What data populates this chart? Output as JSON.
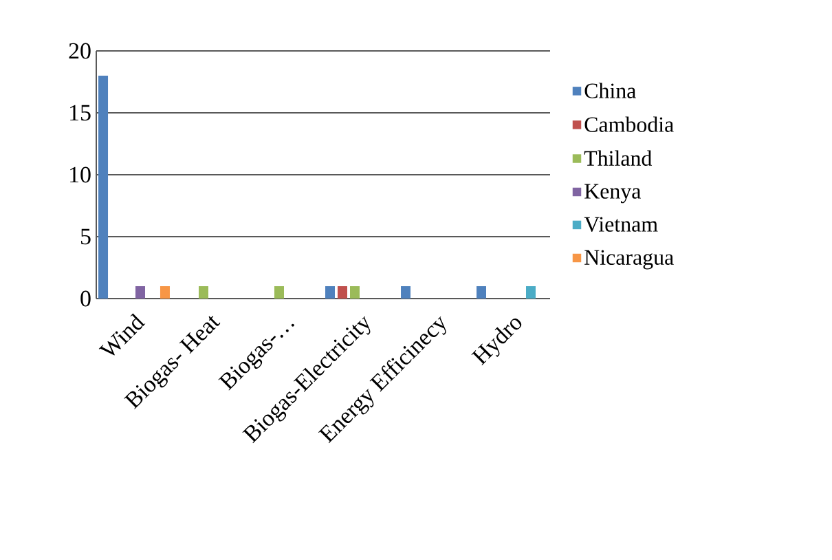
{
  "chart_data": {
    "type": "bar",
    "categories": [
      "Wind",
      "Biogas- Heat",
      "Biogas-…",
      "Biogas-Electricity",
      "Energy Efficinecy",
      "Hydro"
    ],
    "series": [
      {
        "name": "China",
        "color": "#4f81bd",
        "values": [
          18,
          null,
          null,
          1,
          1,
          1
        ]
      },
      {
        "name": "Cambodia",
        "color": "#c0504d",
        "values": [
          null,
          null,
          null,
          1,
          null,
          null
        ]
      },
      {
        "name": "Thiland",
        "color": "#9bbb59",
        "values": [
          null,
          1,
          1,
          1,
          null,
          null
        ]
      },
      {
        "name": "Kenya",
        "color": "#8064a2",
        "values": [
          1,
          null,
          null,
          null,
          null,
          null
        ]
      },
      {
        "name": "Vietnam",
        "color": "#4bacc6",
        "values": [
          null,
          null,
          null,
          null,
          null,
          1
        ]
      },
      {
        "name": "Nicaragua",
        "color": "#f79646",
        "values": [
          1,
          null,
          null,
          null,
          null,
          null
        ]
      }
    ],
    "ylim": [
      0,
      20
    ],
    "yticks": [
      0,
      5,
      10,
      15,
      20
    ],
    "grid": "y",
    "legend": "right"
  }
}
